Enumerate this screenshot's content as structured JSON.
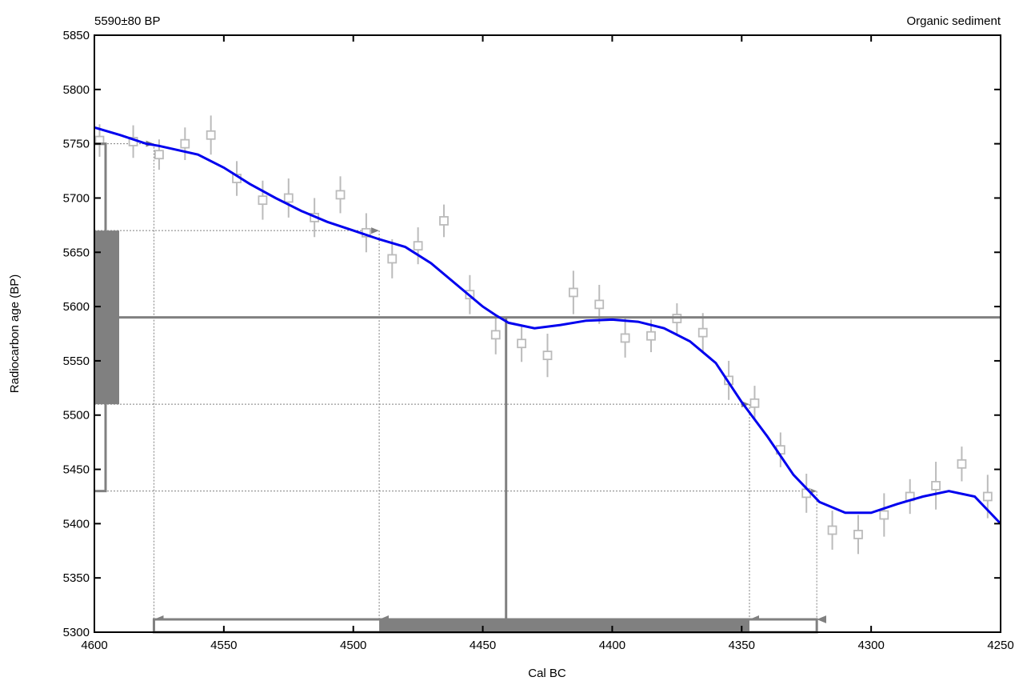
{
  "chart_data": {
    "type": "scatter",
    "title_left": "5590±80 BP",
    "title_right": "Organic sediment",
    "xlabel": "Cal BC",
    "ylabel": "Radiocarbon age (BP)",
    "x_reversed": true,
    "xlim": [
      4600,
      4250
    ],
    "ylim": [
      5300,
      5850
    ],
    "x_ticks": [
      4600,
      4550,
      4500,
      4450,
      4400,
      4350,
      4300,
      4250
    ],
    "y_ticks": [
      5300,
      5350,
      5400,
      5450,
      5500,
      5550,
      5600,
      5650,
      5700,
      5750,
      5800,
      5850
    ],
    "colors": {
      "curve": "#0000ee",
      "measurement": "#808080",
      "points": "#bbbbbb",
      "axis": "#000000"
    },
    "calibration_curve": {
      "x": [
        4600,
        4590,
        4580,
        4575,
        4560,
        4550,
        4540,
        4530,
        4520,
        4510,
        4500,
        4490,
        4480,
        4470,
        4460,
        4450,
        4445,
        4440,
        4430,
        4420,
        4410,
        4400,
        4390,
        4380,
        4370,
        4360,
        4350,
        4340,
        4330,
        4320,
        4310,
        4300,
        4290,
        4280,
        4270,
        4260,
        4250
      ],
      "y": [
        5765,
        5758,
        5750,
        5748,
        5740,
        5728,
        5713,
        5700,
        5688,
        5678,
        5670,
        5662,
        5655,
        5640,
        5620,
        5600,
        5592,
        5585,
        5580,
        5583,
        5587,
        5588,
        5586,
        5580,
        5568,
        5548,
        5512,
        5480,
        5445,
        5420,
        5410,
        5410,
        5418,
        5425,
        5430,
        5425,
        5400
      ]
    },
    "data_points": [
      {
        "x": 4598,
        "y": 5753,
        "err": 15
      },
      {
        "x": 4585,
        "y": 5752,
        "err": 15
      },
      {
        "x": 4575,
        "y": 5740,
        "err": 14
      },
      {
        "x": 4565,
        "y": 5750,
        "err": 15
      },
      {
        "x": 4555,
        "y": 5758,
        "err": 18
      },
      {
        "x": 4545,
        "y": 5718,
        "err": 16
      },
      {
        "x": 4535,
        "y": 5698,
        "err": 18
      },
      {
        "x": 4525,
        "y": 5700,
        "err": 18
      },
      {
        "x": 4515,
        "y": 5682,
        "err": 18
      },
      {
        "x": 4505,
        "y": 5703,
        "err": 17
      },
      {
        "x": 4495,
        "y": 5668,
        "err": 18
      },
      {
        "x": 4485,
        "y": 5644,
        "err": 18
      },
      {
        "x": 4475,
        "y": 5656,
        "err": 17
      },
      {
        "x": 4465,
        "y": 5679,
        "err": 15
      },
      {
        "x": 4455,
        "y": 5611,
        "err": 18
      },
      {
        "x": 4445,
        "y": 5574,
        "err": 18
      },
      {
        "x": 4435,
        "y": 5566,
        "err": 17
      },
      {
        "x": 4425,
        "y": 5555,
        "err": 20
      },
      {
        "x": 4415,
        "y": 5613,
        "err": 20
      },
      {
        "x": 4405,
        "y": 5602,
        "err": 18
      },
      {
        "x": 4395,
        "y": 5571,
        "err": 18
      },
      {
        "x": 4385,
        "y": 5573,
        "err": 15
      },
      {
        "x": 4375,
        "y": 5589,
        "err": 14
      },
      {
        "x": 4365,
        "y": 5576,
        "err": 18
      },
      {
        "x": 4355,
        "y": 5532,
        "err": 18
      },
      {
        "x": 4345,
        "y": 5511,
        "err": 16
      },
      {
        "x": 4335,
        "y": 5468,
        "err": 16
      },
      {
        "x": 4325,
        "y": 5428,
        "err": 18
      },
      {
        "x": 4315,
        "y": 5394,
        "err": 18
      },
      {
        "x": 4305,
        "y": 5390,
        "err": 18
      },
      {
        "x": 4295,
        "y": 5408,
        "err": 20
      },
      {
        "x": 4285,
        "y": 5425,
        "err": 16
      },
      {
        "x": 4275,
        "y": 5435,
        "err": 22
      },
      {
        "x": 4265,
        "y": 5455,
        "err": 16
      },
      {
        "x": 4255,
        "y": 5425,
        "err": 20
      }
    ],
    "measurement": {
      "age": 5590,
      "sigma1": [
        5510,
        5670
      ],
      "sigma2": [
        5430,
        5750
      ]
    },
    "calibrated": {
      "median": 4441,
      "range_1sigma": [
        4490,
        4347
      ],
      "range_2sigma": [
        4577,
        4321
      ]
    }
  }
}
